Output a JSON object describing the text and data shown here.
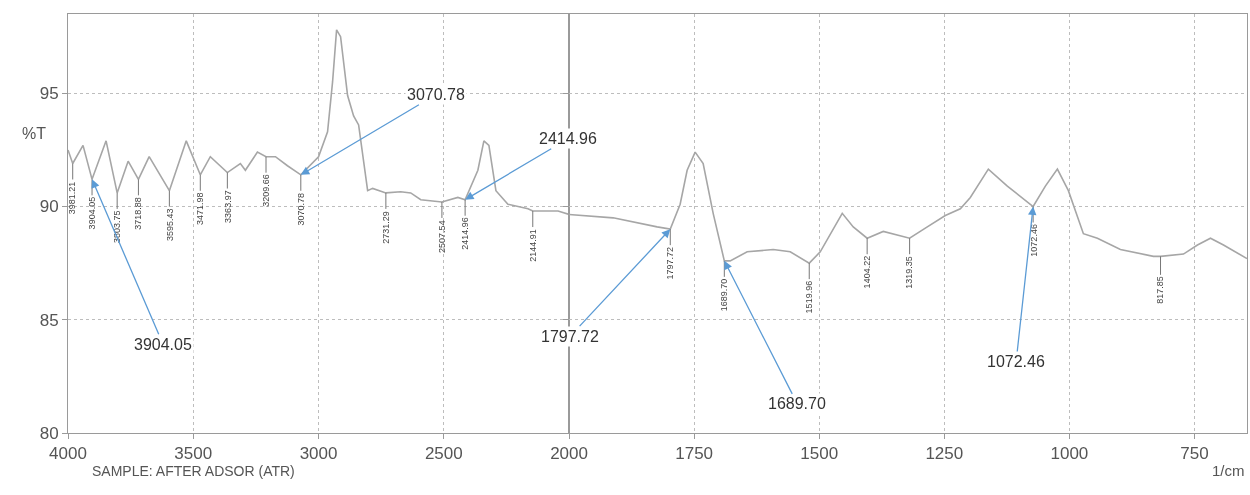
{
  "chart_data": [
    {
      "type": "line",
      "ylabel": "%T",
      "xlim": [
        4000,
        2000
      ],
      "ylim": [
        80,
        98.5
      ],
      "xticks": [
        4000,
        3500,
        3000,
        2500
      ],
      "yticks": [
        80,
        85,
        90,
        95
      ],
      "grid": true,
      "line_style": "solid",
      "color": "#a6a6a6",
      "x": [
        4000,
        3981.21,
        3940,
        3904.05,
        3848,
        3803.75,
        3760,
        3718.88,
        3676,
        3595.43,
        3528,
        3471.98,
        3432,
        3363.97,
        3312,
        3292,
        3244,
        3209.66,
        3172,
        3124,
        3070.78,
        3000,
        2964,
        2944,
        2928,
        2912,
        2884,
        2860,
        2840,
        2804,
        2784,
        2731.29,
        2672,
        2632,
        2592,
        2507.54,
        2444,
        2414.96,
        2364,
        2340,
        2320,
        2292,
        2244,
        2164,
        2144.91,
        2044,
        2000
      ],
      "values": [
        92.5,
        91.9,
        92.7,
        91.2,
        92.9,
        90.6,
        92.0,
        91.2,
        92.2,
        90.7,
        92.9,
        91.4,
        92.2,
        91.5,
        91.9,
        91.6,
        92.4,
        92.2,
        92.2,
        91.8,
        91.4,
        92.2,
        93.3,
        95.5,
        97.8,
        97.5,
        94.9,
        94.0,
        93.6,
        90.7,
        90.8,
        90.6,
        90.65,
        90.6,
        90.3,
        90.2,
        90.4,
        90.3,
        91.6,
        92.9,
        92.7,
        90.7,
        90.1,
        89.9,
        89.8,
        89.8,
        89.65
      ],
      "annotations": [
        {
          "text": "3981.21",
          "x": 3981.21,
          "y": 91.9
        },
        {
          "text": "3904.05",
          "x": 3904.05,
          "y": 91.2
        },
        {
          "text": "3803.75",
          "x": 3803.75,
          "y": 90.6
        },
        {
          "text": "3718.88",
          "x": 3718.88,
          "y": 91.2
        },
        {
          "text": "3595.43",
          "x": 3595.43,
          "y": 90.7
        },
        {
          "text": "3471.98",
          "x": 3471.98,
          "y": 91.4
        },
        {
          "text": "3363.97",
          "x": 3363.97,
          "y": 91.5
        },
        {
          "text": "3209.66",
          "x": 3209.66,
          "y": 92.2
        },
        {
          "text": "3070.78",
          "x": 3070.78,
          "y": 91.4
        },
        {
          "text": "2731.29",
          "x": 2731.29,
          "y": 90.6
        },
        {
          "text": "2507.54",
          "x": 2507.54,
          "y": 90.2
        },
        {
          "text": "2414.96",
          "x": 2414.96,
          "y": 90.3
        },
        {
          "text": "2144.91",
          "x": 2144.91,
          "y": 89.8
        },
        {
          "text": "3904.05",
          "x": 3904.05,
          "y": 91.2
        },
        {
          "text": "3070.78",
          "x": 3070.78,
          "y": 91.4
        },
        {
          "text": "2414.96",
          "x": 2414.96,
          "y": 90.3
        },
        "SAMPLE: AFTER ADSOR (ATR)"
      ]
    },
    {
      "type": "line",
      "xlabel": "1/cm",
      "xlim": [
        2000,
        645
      ],
      "ylim": [
        80,
        98.5
      ],
      "xticks": [
        2000,
        1750,
        1500,
        1250,
        1000,
        750
      ],
      "yticks": [
        80,
        85,
        90,
        95
      ],
      "grid": true,
      "tick_labels": "x",
      "line_style": "solid",
      "color": "#a6a6a6",
      "x": [
        2000,
        1912,
        1824,
        1797.72,
        1778,
        1764,
        1748,
        1732,
        1712,
        1689.7,
        1678,
        1644,
        1592,
        1558,
        1519.96,
        1498,
        1454,
        1432,
        1404.22,
        1372,
        1319.35,
        1284,
        1248,
        1218,
        1198,
        1162,
        1124,
        1072.46,
        1048,
        1024,
        1002,
        972,
        944,
        898,
        832,
        817.85,
        772,
        744,
        718,
        692,
        645
      ],
      "values": [
        89.65,
        89.5,
        89.1,
        89.0,
        90.1,
        91.6,
        92.4,
        91.9,
        89.7,
        87.6,
        87.6,
        88.0,
        88.1,
        88.0,
        87.5,
        88.0,
        89.7,
        89.1,
        88.6,
        88.9,
        88.6,
        89.1,
        89.6,
        89.9,
        90.4,
        91.65,
        90.9,
        90.0,
        90.9,
        91.65,
        90.7,
        88.8,
        88.6,
        88.1,
        87.8,
        87.8,
        87.9,
        88.3,
        88.6,
        88.3,
        87.7
      ],
      "annotations": [
        {
          "text": "1797.72",
          "x": 1797.72,
          "y": 89.0
        },
        {
          "text": "1689.70",
          "x": 1689.7,
          "y": 87.6
        },
        {
          "text": "1519.96",
          "x": 1519.96,
          "y": 87.5
        },
        {
          "text": "1404.22",
          "x": 1404.22,
          "y": 88.6
        },
        {
          "text": "1319.35",
          "x": 1319.35,
          "y": 88.6
        },
        {
          "text": "1072.46",
          "x": 1072.46,
          "y": 90.0
        },
        {
          "text": "817.85",
          "x": 817.85,
          "y": 87.8
        },
        {
          "text": "1797.72",
          "x": 1797.72,
          "y": 89.0
        },
        {
          "text": "1689.70",
          "x": 1689.7,
          "y": 87.6
        },
        {
          "text": "1072.46",
          "x": 1072.46,
          "y": 90.0
        }
      ]
    }
  ]
}
